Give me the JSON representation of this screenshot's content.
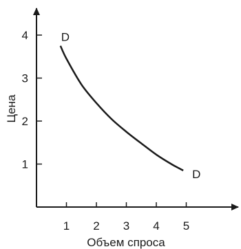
{
  "chart_data": {
    "type": "line",
    "title": "",
    "xlabel": "Объем спроса",
    "ylabel": "Цена",
    "xlim": [
      0,
      6
    ],
    "ylim": [
      0,
      4.6
    ],
    "x_ticks": [
      1,
      2,
      3,
      4,
      5
    ],
    "y_ticks": [
      1,
      2,
      3,
      4
    ],
    "grid": false,
    "legend": "none",
    "series": [
      {
        "label_start": "D",
        "label_end": "D",
        "color": "#1a1a1a",
        "x": [
          0.8,
          1.0,
          1.5,
          2.0,
          2.5,
          3.0,
          3.5,
          4.0,
          4.5,
          4.9
        ],
        "y": [
          3.75,
          3.45,
          2.85,
          2.42,
          2.05,
          1.75,
          1.48,
          1.22,
          1.0,
          0.85
        ]
      }
    ]
  }
}
